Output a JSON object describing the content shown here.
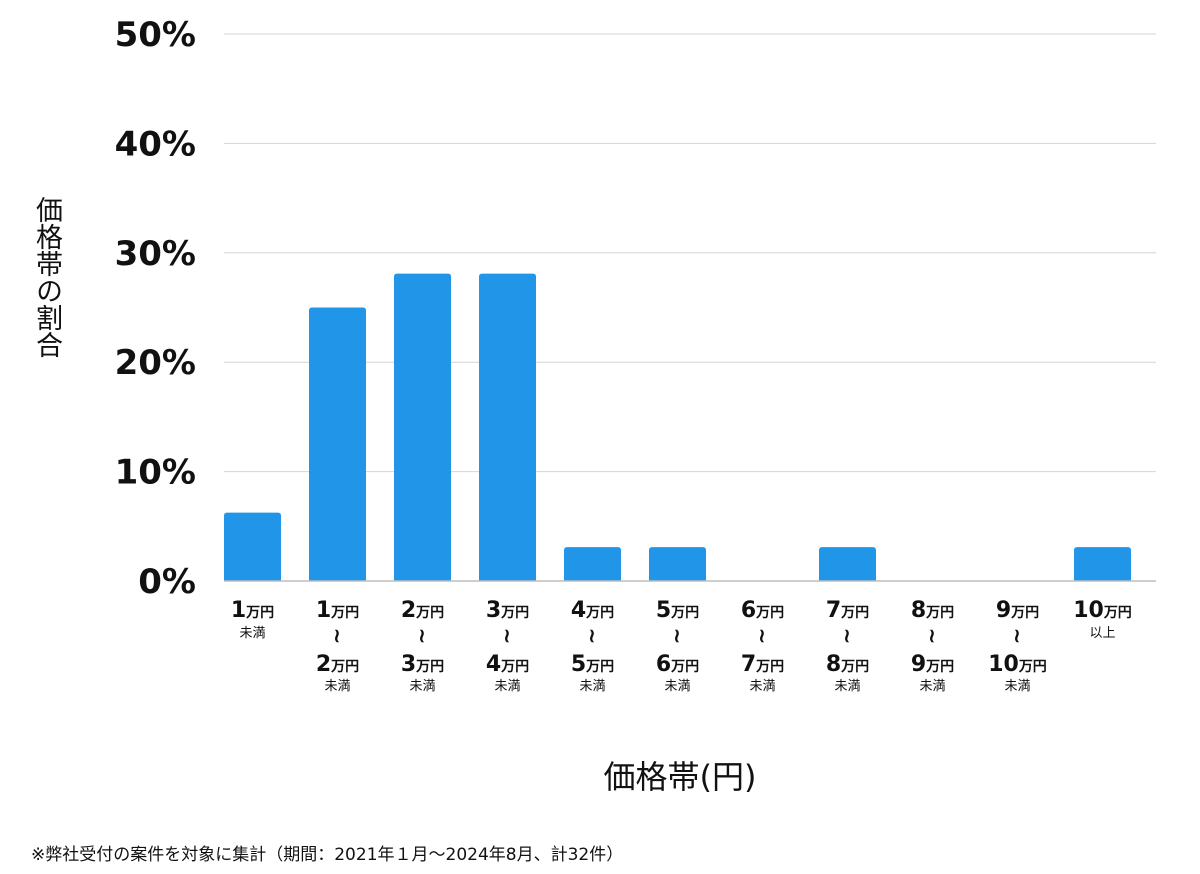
{
  "chart_data": {
    "type": "bar",
    "categories": [
      {
        "line1_num": "1",
        "line1_unit": "万円",
        "line1_small": "未満",
        "has_range": false,
        "line2_num": "",
        "line2_unit": "",
        "suffix": ""
      },
      {
        "line1_num": "1",
        "line1_unit": "万円",
        "line1_small": "",
        "has_range": true,
        "line2_num": "2",
        "line2_unit": "万円",
        "suffix": "未満"
      },
      {
        "line1_num": "2",
        "line1_unit": "万円",
        "line1_small": "",
        "has_range": true,
        "line2_num": "3",
        "line2_unit": "万円",
        "suffix": "未満"
      },
      {
        "line1_num": "3",
        "line1_unit": "万円",
        "line1_small": "",
        "has_range": true,
        "line2_num": "4",
        "line2_unit": "万円",
        "suffix": "未満"
      },
      {
        "line1_num": "4",
        "line1_unit": "万円",
        "line1_small": "",
        "has_range": true,
        "line2_num": "5",
        "line2_unit": "万円",
        "suffix": "未満"
      },
      {
        "line1_num": "5",
        "line1_unit": "万円",
        "line1_small": "",
        "has_range": true,
        "line2_num": "6",
        "line2_unit": "万円",
        "suffix": "未満"
      },
      {
        "line1_num": "6",
        "line1_unit": "万円",
        "line1_small": "",
        "has_range": true,
        "line2_num": "7",
        "line2_unit": "万円",
        "suffix": "未満"
      },
      {
        "line1_num": "7",
        "line1_unit": "万円",
        "line1_small": "",
        "has_range": true,
        "line2_num": "8",
        "line2_unit": "万円",
        "suffix": "未満"
      },
      {
        "line1_num": "8",
        "line1_unit": "万円",
        "line1_small": "",
        "has_range": true,
        "line2_num": "9",
        "line2_unit": "万円",
        "suffix": "未満"
      },
      {
        "line1_num": "9",
        "line1_unit": "万円",
        "line1_small": "",
        "has_range": true,
        "line2_num": "10",
        "line2_unit": "万円",
        "suffix": "未満"
      },
      {
        "line1_num": "10",
        "line1_unit": "万円",
        "line1_small": "以上",
        "has_range": false,
        "line2_num": "",
        "line2_unit": "",
        "suffix": ""
      }
    ],
    "range_glyph": "~",
    "values": [
      6.25,
      25,
      28.1,
      28.1,
      3.1,
      3.1,
      0,
      3.1,
      0,
      0,
      3.1
    ],
    "ylim": [
      0,
      50
    ],
    "yticks": [
      "0%",
      "10%",
      "20%",
      "30%",
      "40%",
      "50%"
    ],
    "ytick_values": [
      0,
      10,
      20,
      30,
      40,
      50
    ],
    "ylabel": "価格帯の割合",
    "xlabel": "価格帯(円)",
    "title": "",
    "grid": true,
    "bar_color": "#2196e8",
    "grid_color": "#d4d4d4",
    "axis_color": "#bdbdbd"
  },
  "footnote": "※弊社受付の案件を対象に集計（期間：2021年１月～2024年8月、計32件）"
}
